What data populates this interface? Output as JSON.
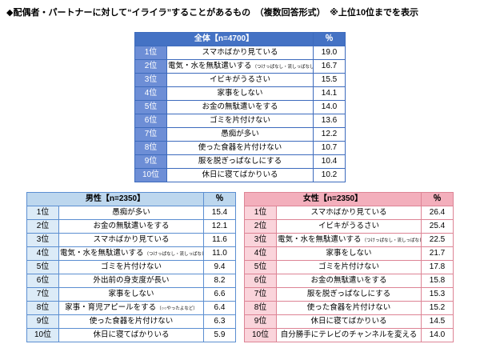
{
  "title": "◆配偶者・パートナーに対して“イライラ”することがあるもの　（複数回答形式）　※上位10位までを表示",
  "colors": {
    "overall_header_bg": "#4472c4",
    "overall_rank_bg": "#6d8ed6",
    "overall_border": "#3d6bbd",
    "men_header_bg": "#bdd7ee",
    "men_rank_bg": "#dcebf7",
    "men_border": "#5b8ed1",
    "women_header_bg": "#f3afbc",
    "women_rank_bg": "#fad4db",
    "women_border": "#dd8495"
  },
  "chart_data": [
    {
      "type": "table",
      "group": "全体【n=4700】",
      "percent_header": "％",
      "rows": [
        {
          "rank": "1位",
          "item": "スマホばかり見ている",
          "note": "",
          "value": "19.0"
        },
        {
          "rank": "2位",
          "item": "電気・水を無駄遣いする",
          "note": "（つけっぱなし・流しっぱなし）",
          "value": "16.7"
        },
        {
          "rank": "3位",
          "item": "イビキがうるさい",
          "note": "",
          "value": "15.5"
        },
        {
          "rank": "4位",
          "item": "家事をしない",
          "note": "",
          "value": "14.1"
        },
        {
          "rank": "5位",
          "item": "お金の無駄遣いをする",
          "note": "",
          "value": "14.0"
        },
        {
          "rank": "6位",
          "item": "ゴミを片付けない",
          "note": "",
          "value": "13.6"
        },
        {
          "rank": "7位",
          "item": "愚痴が多い",
          "note": "",
          "value": "12.2"
        },
        {
          "rank": "8位",
          "item": "使った食器を片付けない",
          "note": "",
          "value": "10.7"
        },
        {
          "rank": "9位",
          "item": "服を脱ぎっぱなしにする",
          "note": "",
          "value": "10.4"
        },
        {
          "rank": "10位",
          "item": "休日に寝てばかりいる",
          "note": "",
          "value": "10.2"
        }
      ]
    },
    {
      "type": "table",
      "group": "男性【n=2350】",
      "percent_header": "％",
      "rows": [
        {
          "rank": "1位",
          "item": "愚痴が多い",
          "note": "",
          "value": "15.4"
        },
        {
          "rank": "2位",
          "item": "お金の無駄遣いをする",
          "note": "",
          "value": "12.1"
        },
        {
          "rank": "3位",
          "item": "スマホばかり見ている",
          "note": "",
          "value": "11.6"
        },
        {
          "rank": "4位",
          "item": "電気・水を無駄遣いする",
          "note": "（つけっぱなし・流しっぱなし）",
          "value": "11.0"
        },
        {
          "rank": "5位",
          "item": "ゴミを片付けない",
          "note": "",
          "value": "9.4"
        },
        {
          "rank": "6位",
          "item": "外出前の身支度が長い",
          "note": "",
          "value": "8.2"
        },
        {
          "rank": "7位",
          "item": "家事をしない",
          "note": "",
          "value": "6.6"
        },
        {
          "rank": "8位",
          "item": "家事・育児アピールをする",
          "note": "（○○やったよなど）",
          "value": "6.4"
        },
        {
          "rank": "9位",
          "item": "使った食器を片付けない",
          "note": "",
          "value": "6.3"
        },
        {
          "rank": "10位",
          "item": "休日に寝てばかりいる",
          "note": "",
          "value": "5.9"
        }
      ]
    },
    {
      "type": "table",
      "group": "女性【n=2350】",
      "percent_header": "％",
      "rows": [
        {
          "rank": "1位",
          "item": "スマホばかり見ている",
          "note": "",
          "value": "26.4"
        },
        {
          "rank": "2位",
          "item": "イビキがうるさい",
          "note": "",
          "value": "25.4"
        },
        {
          "rank": "3位",
          "item": "電気・水を無駄遣いする",
          "note": "（つけっぱなし・流しっぱなし）",
          "value": "22.5"
        },
        {
          "rank": "4位",
          "item": "家事をしない",
          "note": "",
          "value": "21.7"
        },
        {
          "rank": "5位",
          "item": "ゴミを片付けない",
          "note": "",
          "value": "17.8"
        },
        {
          "rank": "6位",
          "item": "お金の無駄遣いをする",
          "note": "",
          "value": "15.8"
        },
        {
          "rank": "7位",
          "item": "服を脱ぎっぱなしにする",
          "note": "",
          "value": "15.3"
        },
        {
          "rank": "8位",
          "item": "使った食器を片付けない",
          "note": "",
          "value": "15.2"
        },
        {
          "rank": "9位",
          "item": "休日に寝てばかりいる",
          "note": "",
          "value": "14.5"
        },
        {
          "rank": "10位",
          "item": "自分勝手にテレビのチャンネルを変える",
          "note": "",
          "value": "14.0"
        }
      ]
    }
  ]
}
